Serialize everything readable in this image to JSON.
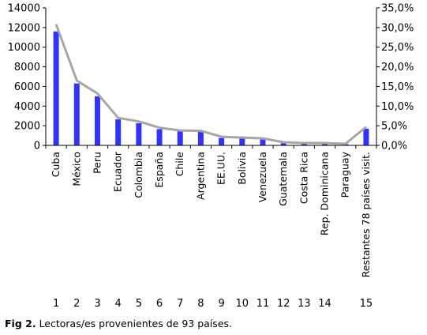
{
  "chart_data": {
    "type": "bar",
    "categories": [
      "Cuba",
      "México",
      "Peru",
      "Ecuador",
      "Colombia",
      "España",
      "Chile",
      "Argentina",
      "EE.UU.",
      "Bolivia",
      "Venezuela",
      "Guatemala",
      "Costa Rica",
      "Rep. Dominicana",
      "Paraguay",
      "Restantes 78 países visit."
    ],
    "rank_labels": [
      "1",
      "2",
      "3",
      "4",
      "5",
      "6",
      "7",
      "8",
      "9",
      "10",
      "11",
      "12",
      "13",
      "14",
      "",
      "15"
    ],
    "series": [
      {
        "type": "bar",
        "axis": "left",
        "color": "#3333ff",
        "values": [
          11600,
          6300,
          5000,
          2650,
          2250,
          1650,
          1450,
          1400,
          750,
          700,
          600,
          220,
          150,
          120,
          130,
          1700
        ]
      },
      {
        "type": "line",
        "axis": "right",
        "color": "#a6a6a6",
        "values": [
          30.8,
          16.5,
          13.2,
          7.0,
          6.1,
          4.5,
          3.8,
          3.7,
          2.2,
          2.0,
          1.8,
          0.8,
          0.6,
          0.6,
          0.4,
          4.7
        ]
      }
    ],
    "y_left": {
      "min": 0,
      "max": 14000,
      "ticks": [
        "0",
        "2000",
        "4000",
        "6000",
        "8000",
        "10000",
        "12000",
        "14000"
      ]
    },
    "y_right": {
      "min": 0,
      "max": 35,
      "ticks": [
        "0,0%",
        "5,0%",
        "10,0%",
        "15,0%",
        "20,0%",
        "25,0%",
        "30,0%",
        "35,0%"
      ]
    },
    "grid": false,
    "legend": "none"
  },
  "caption": {
    "label": "Fig 2.",
    "text": "Lectoras/es provenientes de 93 países."
  }
}
